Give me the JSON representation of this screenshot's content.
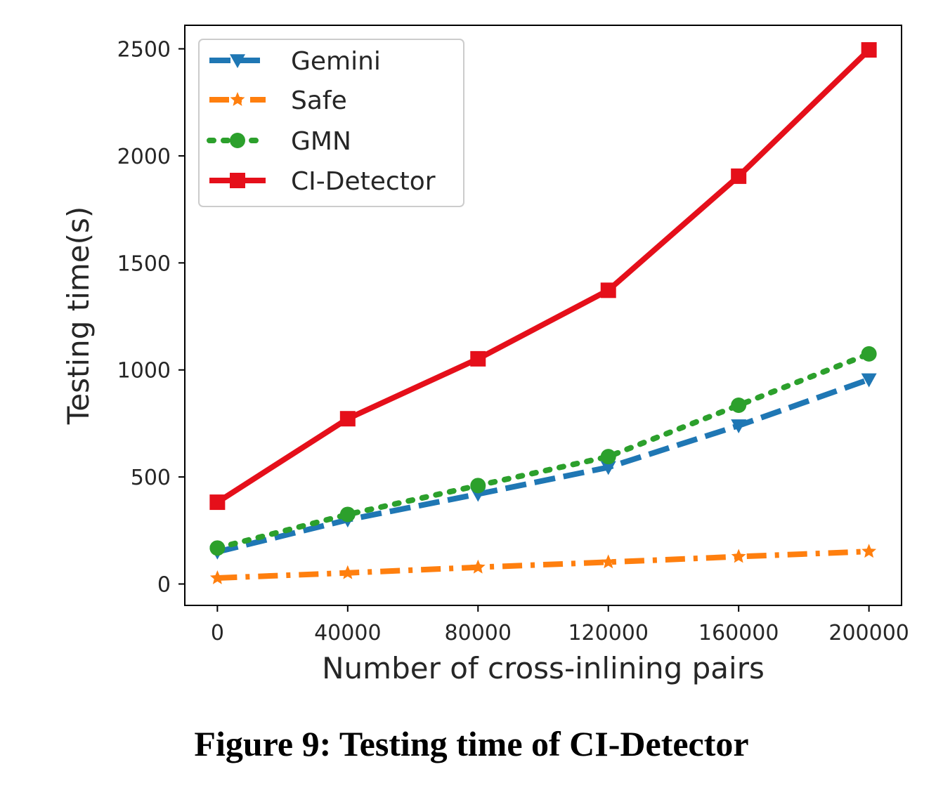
{
  "caption": "Figure 9: Testing time of CI-Detector",
  "chart_data": {
    "type": "line",
    "title": "",
    "xlabel": "Number of cross-inlining pairs",
    "ylabel": "Testing time(s)",
    "x": [
      0,
      40000,
      80000,
      120000,
      160000,
      200000
    ],
    "x_ticks": [
      "0",
      "40000",
      "80000",
      "120000",
      "160000",
      "200000"
    ],
    "y_ticks": [
      "0",
      "500",
      "1000",
      "1500",
      "2000",
      "2500"
    ],
    "xlim": [
      -10000,
      210000
    ],
    "ylim": [
      -100,
      2610
    ],
    "grid": false,
    "legend_position": "top-left",
    "series": [
      {
        "name": "Gemini",
        "values": [
          150,
          300,
          420,
          545,
          740,
          955
        ],
        "color": "#1f77b4",
        "style": "dashed",
        "marker": "triangle-down"
      },
      {
        "name": "Safe",
        "values": [
          28,
          52,
          78,
          102,
          128,
          152
        ],
        "color": "#ff7f0e",
        "style": "dashdot",
        "marker": "star"
      },
      {
        "name": "GMN",
        "values": [
          168,
          325,
          460,
          595,
          835,
          1075
        ],
        "color": "#2ca02c",
        "style": "dotted",
        "marker": "circle"
      },
      {
        "name": "CI-Detector",
        "values": [
          382,
          772,
          1052,
          1372,
          1905,
          2495
        ],
        "color": "#e50f1a",
        "style": "solid",
        "marker": "square"
      }
    ]
  }
}
